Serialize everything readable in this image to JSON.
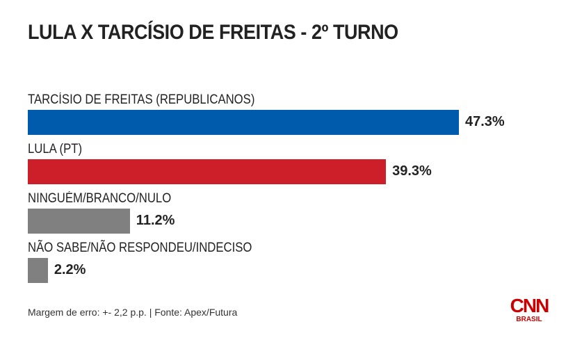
{
  "chart_data": {
    "type": "bar",
    "title": "LULA X TARCÍSIO DE FREITAS - 2º TURNO",
    "categories": [
      "TARCÍSIO DE FREITAS (REPUBLICANOS)",
      "LULA (PT)",
      "NINGUÉM/BRANCO/NULO",
      "NÃO SABE/NÃO RESPONDEU/INDECISO"
    ],
    "values": [
      47.3,
      39.3,
      11.2,
      2.2
    ],
    "value_labels": [
      "47.3%",
      "39.3%",
      "11.2%",
      "2.2%"
    ],
    "colors": [
      "#005bac",
      "#cc1f2a",
      "#808080",
      "#808080"
    ],
    "orientation": "horizontal",
    "xlim": [
      0,
      47.3
    ]
  },
  "footer": "Margem de erro: +- 2,2 p.p. | Fonte: Apex/Futura",
  "logo": {
    "name": "CNN",
    "sub": "BRASIL"
  }
}
